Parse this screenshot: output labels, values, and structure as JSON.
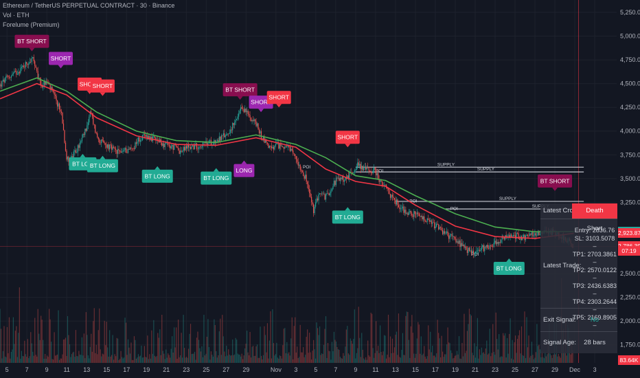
{
  "header": {
    "title": "Ethereum / TetherUS PERPETUAL CONTRACT · 30 · Binance",
    "volume_label": "Vol · ETH",
    "indicator_label": "Forelume (Premium)"
  },
  "price_axis": {
    "ticks": [
      "5,250.00",
      "5,000.00",
      "4,750.00",
      "4,500.00",
      "4,250.00",
      "4,000.00",
      "3,750.00",
      "3,500.00",
      "3,250.00",
      "2,500.00",
      "2,250.00",
      "2,000.00",
      "1,750.00"
    ],
    "tick_values": [
      5250,
      5000,
      4750,
      4500,
      4250,
      4000,
      3750,
      3500,
      3250,
      2500,
      2250,
      2000,
      1750
    ],
    "tags": [
      {
        "text": "2,943.51",
        "color": "#26a69a",
        "value": 2943.51
      },
      {
        "text": "2,923.87",
        "color": "#f23645",
        "value": 2923.87
      },
      {
        "text": "2,786.39",
        "color": "#f23645",
        "value": 2786.39
      },
      {
        "text": "07:19",
        "color": "#f23645",
        "value": 2740
      },
      {
        "text": "83.64K",
        "color": "#f23645",
        "value": 1590
      }
    ]
  },
  "time_axis": {
    "labels": [
      "5",
      "7",
      "9",
      "11",
      "13",
      "15",
      "17",
      "19",
      "21",
      "23",
      "25",
      "27",
      "29",
      "Nov",
      "3",
      "5",
      "7",
      "9",
      "11",
      "13",
      "15",
      "17",
      "19",
      "21",
      "23",
      "25",
      "27",
      "29",
      "Dec",
      "3"
    ],
    "day_index": [
      5,
      7,
      9,
      11,
      13,
      15,
      17,
      19,
      21,
      23,
      25,
      27,
      29,
      32,
      34,
      36,
      38,
      40,
      42,
      44,
      46,
      48,
      50,
      52,
      54,
      56,
      58,
      60,
      62,
      64
    ]
  },
  "chart_data": {
    "type": "candlestick",
    "symbol": "ETHUSDT.P",
    "timeframe": "30",
    "close_path": [
      [
        4.3,
        4480
      ],
      [
        5,
        4560
      ],
      [
        6,
        4620
      ],
      [
        7,
        4720
      ],
      [
        7.6,
        4760
      ],
      [
        8,
        4600
      ],
      [
        8.5,
        4480
      ],
      [
        9,
        4520
      ],
      [
        9.6,
        4400
      ],
      [
        10,
        4300
      ],
      [
        10.5,
        4180
      ],
      [
        11,
        3700
      ],
      [
        11.5,
        3720
      ],
      [
        12,
        3800
      ],
      [
        12.5,
        3900
      ],
      [
        13,
        4050
      ],
      [
        13.4,
        4200
      ],
      [
        14,
        3950
      ],
      [
        14.5,
        3880
      ],
      [
        15,
        3850
      ],
      [
        16,
        3780
      ],
      [
        17,
        3800
      ],
      [
        17.7,
        3820
      ],
      [
        18,
        3900
      ],
      [
        19,
        3950
      ],
      [
        20,
        3900
      ],
      [
        21,
        3850
      ],
      [
        22,
        3820
      ],
      [
        22.5,
        3780
      ],
      [
        23,
        3830
      ],
      [
        24,
        3840
      ],
      [
        25,
        3870
      ],
      [
        26,
        3900
      ],
      [
        27,
        3960
      ],
      [
        28,
        4100
      ],
      [
        28.6,
        4250
      ],
      [
        29,
        4200
      ],
      [
        30,
        4080
      ],
      [
        30.5,
        3950
      ],
      [
        31,
        3880
      ],
      [
        31.6,
        3800
      ],
      [
        32,
        3850
      ],
      [
        33,
        3840
      ],
      [
        34,
        3720
      ],
      [
        35,
        3500
      ],
      [
        35.8,
        3150
      ],
      [
        36.3,
        3350
      ],
      [
        37,
        3300
      ],
      [
        38,
        3480
      ],
      [
        39,
        3500
      ],
      [
        39.6,
        3560
      ],
      [
        40.2,
        3650
      ],
      [
        41,
        3600
      ],
      [
        42,
        3580
      ],
      [
        42.5,
        3450
      ],
      [
        43,
        3400
      ],
      [
        43.8,
        3280
      ],
      [
        45,
        3150
      ],
      [
        46,
        3120
      ],
      [
        47,
        3060
      ],
      [
        48,
        3000
      ],
      [
        49,
        2920
      ],
      [
        50,
        2860
      ],
      [
        51,
        2750
      ],
      [
        52,
        2720
      ],
      [
        53,
        2780
      ],
      [
        54,
        2820
      ],
      [
        55,
        2880
      ],
      [
        56,
        2900
      ],
      [
        57,
        2880
      ],
      [
        58,
        2920
      ],
      [
        59,
        2950
      ],
      [
        60,
        2930
      ],
      [
        61,
        2880
      ],
      [
        61.9,
        2786
      ]
    ],
    "ema_green": [
      [
        4.3,
        4420
      ],
      [
        8,
        4560
      ],
      [
        11,
        4420
      ],
      [
        14,
        4200
      ],
      [
        18,
        4000
      ],
      [
        22,
        3900
      ],
      [
        26,
        3880
      ],
      [
        30,
        3960
      ],
      [
        34,
        3860
      ],
      [
        37,
        3720
      ],
      [
        40,
        3530
      ],
      [
        43,
        3480
      ],
      [
        46,
        3320
      ],
      [
        50,
        3130
      ],
      [
        54,
        2990
      ],
      [
        58,
        2940
      ],
      [
        61.9,
        2943
      ]
    ],
    "ema_red": [
      [
        4.3,
        4340
      ],
      [
        8,
        4500
      ],
      [
        11,
        4380
      ],
      [
        14,
        4140
      ],
      [
        18,
        3950
      ],
      [
        22,
        3860
      ],
      [
        26,
        3850
      ],
      [
        30,
        3930
      ],
      [
        34,
        3830
      ],
      [
        37,
        3600
      ],
      [
        40,
        3470
      ],
      [
        43,
        3420
      ],
      [
        46,
        3220
      ],
      [
        50,
        3000
      ],
      [
        54,
        2890
      ],
      [
        58,
        2870
      ],
      [
        61.9,
        2924
      ]
    ],
    "signals": [
      {
        "text": "BT SHORT",
        "kind": "short",
        "color": "#880e4f",
        "t": 7.5,
        "price": 4840
      },
      {
        "text": "SHORT",
        "kind": "short",
        "color": "#9c27b0",
        "t": 10.4,
        "price": 4660
      },
      {
        "text": "SHORT",
        "kind": "short",
        "color": "#f23645",
        "t": 13.3,
        "price": 4390
      },
      {
        "text": "SHORT",
        "kind": "short",
        "color": "#f23645",
        "t": 14.6,
        "price": 4370
      },
      {
        "text": "BT SHORT",
        "kind": "short",
        "color": "#880e4f",
        "t": 28.4,
        "price": 4330
      },
      {
        "text": "SHORT",
        "kind": "short",
        "color": "#9c27b0",
        "t": 30.5,
        "price": 4200
      },
      {
        "text": "SHORT",
        "kind": "short",
        "color": "#f23645",
        "t": 32.3,
        "price": 4250
      },
      {
        "text": "SHORT",
        "kind": "short",
        "color": "#f23645",
        "t": 39.2,
        "price": 3830
      },
      {
        "text": "BT SHORT",
        "kind": "short",
        "color": "#880e4f",
        "t": 60,
        "price": 3370
      },
      {
        "text": "BT LON",
        "kind": "long",
        "color": "#22ab94",
        "t": 12.6,
        "price": 3760
      },
      {
        "text": "BT LONG",
        "kind": "long",
        "color": "#22ab94",
        "t": 14.6,
        "price": 3740
      },
      {
        "text": "BT LONG",
        "kind": "long",
        "color": "#22ab94",
        "t": 20.1,
        "price": 3630
      },
      {
        "text": "BT LONG",
        "kind": "long",
        "color": "#22ab94",
        "t": 26,
        "price": 3610
      },
      {
        "text": "LONG",
        "kind": "long",
        "color": "#9c27b0",
        "t": 28.8,
        "price": 3690
      },
      {
        "text": "BT LONG",
        "kind": "long",
        "color": "#22ab94",
        "t": 39.2,
        "price": 3200
      },
      {
        "text": "BT LONG",
        "kind": "long",
        "color": "#22ab94",
        "t": 55.4,
        "price": 2660
      }
    ],
    "supply_zones": [
      {
        "label": "SUPPLY",
        "price": 3620,
        "from": 40,
        "to": 62.9,
        "label_at": 48.2
      },
      {
        "label": "SUPPLY",
        "price": 3570,
        "from": 40,
        "to": 62.9,
        "label_at": 52.2
      },
      {
        "label": "SUPPLY",
        "price": 3260,
        "from": 44,
        "to": 62.9,
        "label_at": 54.4
      },
      {
        "label": "SUPPLY",
        "price": 3180,
        "from": 49,
        "to": 62.9,
        "label_at": 57.7
      }
    ],
    "poi_markers": [
      {
        "label": "POI",
        "t": 34.7,
        "price": 3630
      },
      {
        "label": "POI",
        "t": 42,
        "price": 3590
      },
      {
        "label": "POI",
        "t": 45.4,
        "price": 3270
      },
      {
        "label": "POI",
        "t": 49.5,
        "price": 3190
      },
      {
        "label": "POI",
        "t": 51.6,
        "price": 2710
      }
    ],
    "ylim": [
      1560,
      5380
    ],
    "xlim": [
      4.3,
      66.2
    ]
  },
  "info_table": {
    "latest_cross_label": "Latest Cross:",
    "latest_cross_value": "Death",
    "latest_trade_label": "Latest Trade:",
    "trade_direction": "Short",
    "trade_lines": [
      "Entry: 2836.76",
      "SL: 3103.5078 –",
      "TP1: 2703.3861 –",
      "TP2: 2570.0122 –",
      "TP3: 2436.6383 –",
      "TP4: 2303.2644 –",
      "TP5: 2169.8905 –"
    ],
    "exit_signal_label": "Exit Signal:",
    "exit_signal_value": "No",
    "signal_age_label": "Signal Age:",
    "signal_age_value": "28 bars"
  },
  "colors": {
    "background": "#131722",
    "up": "#26a69a",
    "down": "#ef5350",
    "ema_green": "#4caf50",
    "ema_red": "#f23645"
  }
}
